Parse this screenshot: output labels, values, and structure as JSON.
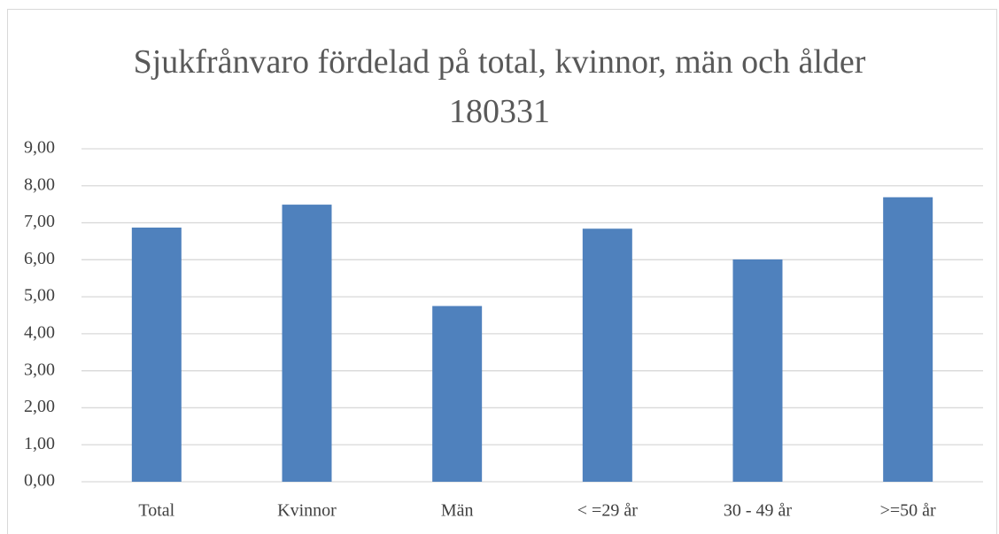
{
  "chart_data": {
    "type": "bar",
    "title": "Sjukfrånvaro fördelad på total, kvinnor, män och ålder 180331",
    "categories": [
      "Total",
      "Kvinnor",
      "Män",
      "< =29 år",
      "30 - 49 år",
      ">=50 år"
    ],
    "values": [
      6.87,
      7.49,
      4.75,
      6.84,
      6.01,
      7.69
    ],
    "color": "#4f81bd",
    "ylim": [
      0,
      9
    ],
    "yticks": [
      {
        "value": 0,
        "label": "0,00"
      },
      {
        "value": 1,
        "label": "1,00"
      },
      {
        "value": 2,
        "label": "2,00"
      },
      {
        "value": 3,
        "label": "3,00"
      },
      {
        "value": 4,
        "label": "4,00"
      },
      {
        "value": 5,
        "label": "5,00"
      },
      {
        "value": 6,
        "label": "6,00"
      },
      {
        "value": 7,
        "label": "7,00"
      },
      {
        "value": 8,
        "label": "8,00"
      },
      {
        "value": 9,
        "label": "9,00"
      }
    ],
    "grid": true
  }
}
